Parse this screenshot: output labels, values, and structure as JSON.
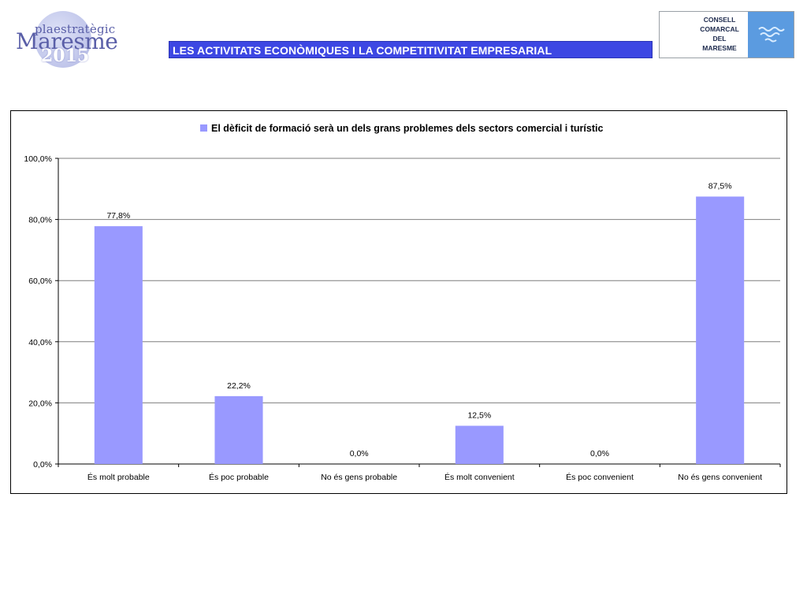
{
  "header": {
    "logo_left": {
      "line1": "plaestratègic",
      "line2": "Maresme",
      "line3": "2015"
    },
    "section_title": "LES ACTIVITATS ECONÒMIQUES I LA COMPETITIVITAT EMPRESARIAL",
    "logo_right": {
      "lines": [
        "CONSELL",
        "COMARCAL",
        "DEL",
        "MARESME"
      ],
      "emblem_icon": "wave-emblem-icon",
      "emblem_color": "#5b9be0"
    }
  },
  "chart_data": {
    "type": "bar",
    "legend": "El dèficit de formació serà un dels grans problemes dels sectors comercial i turístic",
    "legend_position": "top",
    "categories": [
      "És molt probable",
      "És poc probable",
      "No és gens probable",
      "És molt convenient",
      "És poc convenient",
      "No és gens convenient"
    ],
    "values": [
      77.8,
      22.2,
      0.0,
      12.5,
      0.0,
      87.5
    ],
    "value_labels": [
      "77,8%",
      "22,2%",
      "0,0%",
      "12,5%",
      "0,0%",
      "87,5%"
    ],
    "ylim": [
      0,
      100
    ],
    "y_ticks": [
      0,
      20,
      40,
      60,
      80,
      100
    ],
    "y_tick_labels": [
      "0,0%",
      "20,0%",
      "40,0%",
      "60,0%",
      "80,0%",
      "100,0%"
    ],
    "grid": true,
    "bar_color": "#9999ff"
  }
}
